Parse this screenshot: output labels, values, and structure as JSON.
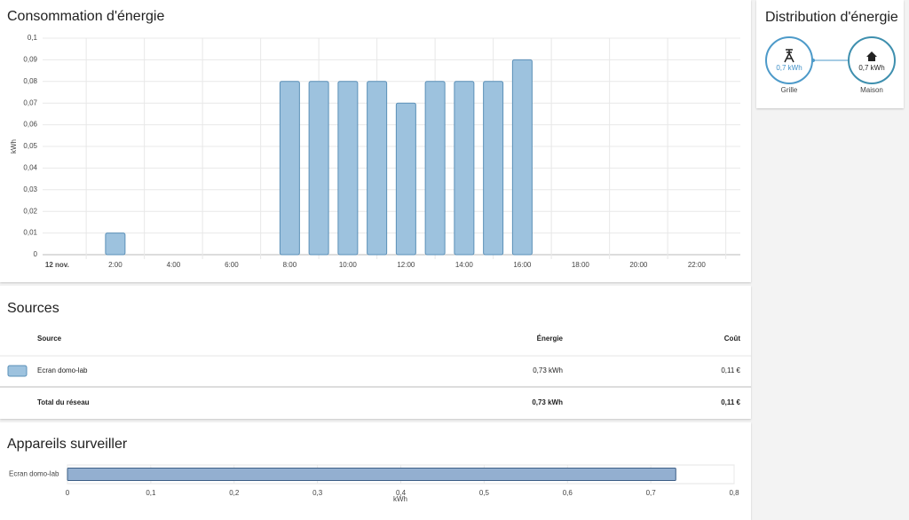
{
  "chart_data": [
    {
      "type": "bar",
      "title": "Consommation d'énergie",
      "y_label": "kWh",
      "categories": [
        "12 nov.",
        null,
        "2:00",
        null,
        "4:00",
        null,
        "6:00",
        null,
        "8:00",
        null,
        "10:00",
        null,
        "12:00",
        null,
        "14:00",
        null,
        "16:00",
        null,
        "18:00",
        null,
        "20:00",
        null,
        "22:00",
        null
      ],
      "values": [
        0,
        0,
        0.01,
        0,
        0,
        0,
        0,
        0,
        0.08,
        0.08,
        0.08,
        0.08,
        0.07,
        0.08,
        0.08,
        0.08,
        0.09,
        null,
        null,
        null,
        null,
        null,
        null,
        null
      ],
      "color": "#9dc2de",
      "edge_color": "#5b90b8",
      "ylim": [
        0,
        0.1
      ],
      "yticks": [
        0,
        {
          "value": 0.01,
          "label": "0,01"
        },
        {
          "value": 0.02,
          "label": "0,02"
        },
        {
          "value": 0.03,
          "label": "0,03"
        },
        {
          "value": 0.04,
          "label": "0,04"
        },
        {
          "value": 0.05,
          "label": "0,05"
        },
        {
          "value": 0.06,
          "label": "0,06"
        },
        {
          "value": 0.07,
          "label": "0,07"
        },
        {
          "value": 0.08,
          "label": "0,08"
        },
        {
          "value": 0.09,
          "label": "0,09"
        },
        {
          "value": 0.1,
          "label": "0,1"
        }
      ],
      "grid": true
    },
    {
      "type": "hbar",
      "title": "Appareils surveiller",
      "x_label": "kWh",
      "categories": [
        "Ecran domo-lab"
      ],
      "values": [
        0.73
      ],
      "color": "#93afd0",
      "edge_color": "#3e5f86",
      "xlim": [
        0,
        0.8
      ],
      "xticks": [
        0,
        {
          "value": 0.1,
          "label": "0,1"
        },
        {
          "value": 0.2,
          "label": "0,2"
        },
        {
          "value": 0.3,
          "label": "0,3"
        },
        {
          "value": 0.4,
          "label": "0,4"
        },
        {
          "value": 0.5,
          "label": "0,5"
        },
        {
          "value": 0.6,
          "label": "0,6"
        },
        {
          "value": 0.7,
          "label": "0,7"
        },
        {
          "value": 0.8,
          "label": "0,8"
        }
      ],
      "grid": true
    }
  ],
  "sources": {
    "title": "Sources",
    "headers": [
      "Source",
      "Énergie",
      "Coût"
    ],
    "rows": [
      [
        "Ecran domo-lab",
        "0,73 kWh",
        "0,11 €"
      ]
    ],
    "total": [
      "Total du réseau",
      "0,73 kWh",
      "0,11 €"
    ]
  },
  "distribution": {
    "title": "Distribution d'énergie",
    "nodes": [
      {
        "value": "0,7 kWh",
        "label": "Grille"
      },
      {
        "value": "0,7 kWh",
        "label": "Maison"
      }
    ]
  }
}
